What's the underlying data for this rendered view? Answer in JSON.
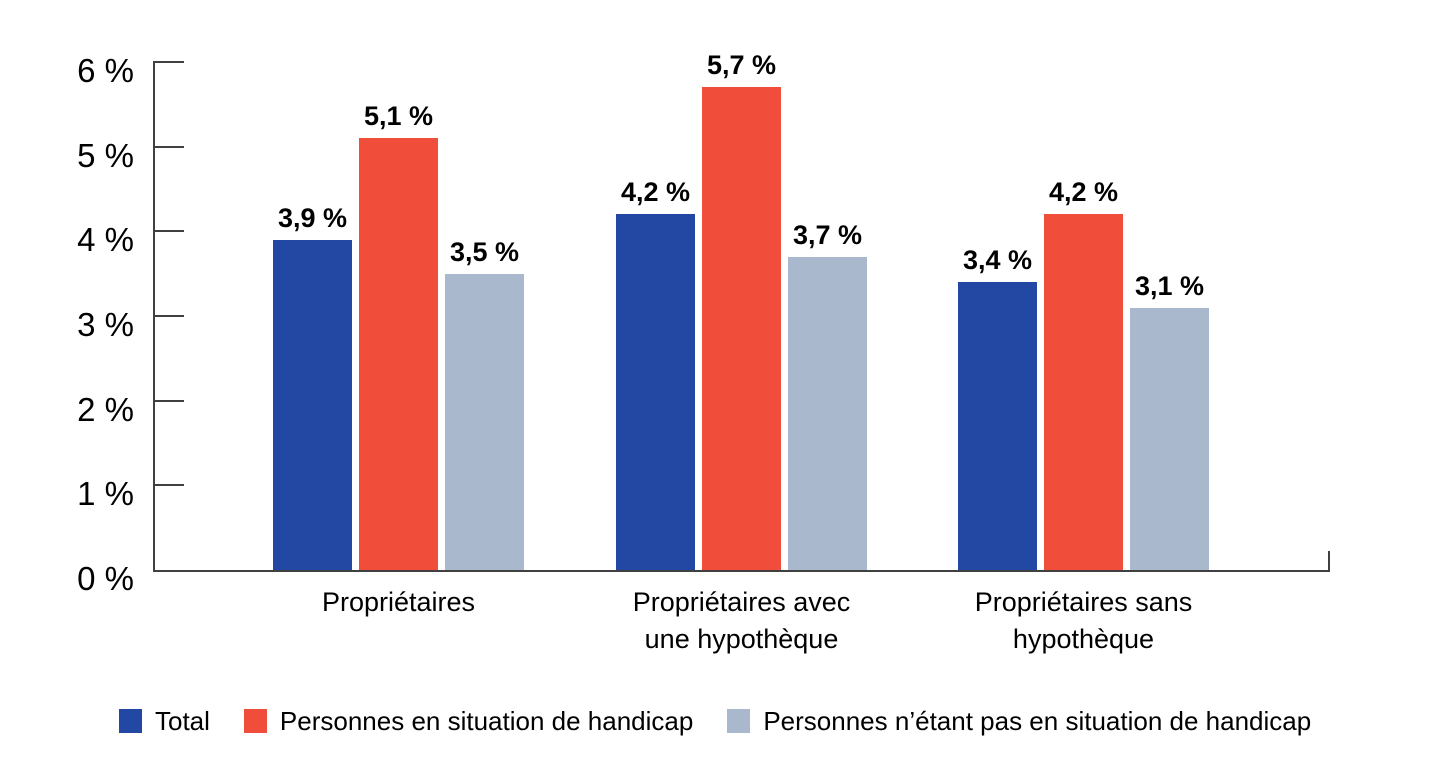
{
  "chart_data": {
    "type": "bar",
    "title": "",
    "unit": "%",
    "grid": false,
    "legend_position": "bottom",
    "categories": [
      "Propriétaires",
      "Propriétaires avec une hypothèque",
      "Propriétaires sans hypothèque"
    ],
    "category_lines": [
      [
        "Propriétaires"
      ],
      [
        "Propriétaires avec",
        "une hypothèque"
      ],
      [
        "Propriétaires sans",
        "hypothèque"
      ]
    ],
    "series": [
      {
        "name": "Total",
        "slug": "total",
        "color": "#2348A3",
        "values": [
          3.9,
          4.2,
          3.4
        ],
        "value_labels": [
          "3,9 %",
          "4,2 %",
          "3,4 %"
        ]
      },
      {
        "name": "Personnes en situation de handicap",
        "slug": "personnes-en-situation-de-handicap",
        "color": "#F04D3B",
        "values": [
          5.1,
          5.7,
          4.2
        ],
        "value_labels": [
          "5,1 %",
          "5,7 %",
          "4,2 %"
        ]
      },
      {
        "name": "Personnes n’étant pas en situation de handicap",
        "slug": "personnes-pas-en-situation-de-handicap",
        "color": "#AAB8CE",
        "values": [
          3.5,
          3.7,
          3.1
        ],
        "value_labels": [
          "3,5 %",
          "3,7 %",
          "3,1 %"
        ]
      }
    ],
    "y_axis": {
      "min": 0,
      "max": 6,
      "step": 1,
      "tick_labels": [
        "0 %",
        "1 %",
        "2 %",
        "3 %",
        "4 %",
        "5 %",
        "6 %"
      ]
    }
  },
  "colors": {
    "background": "#ffffff",
    "axis": "#404040",
    "text": "#000000"
  }
}
